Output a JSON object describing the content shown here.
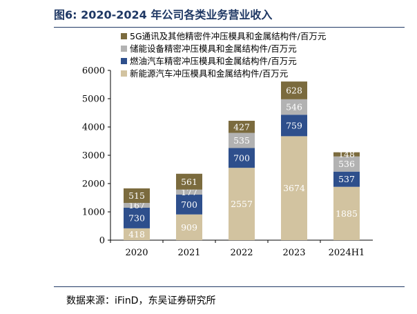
{
  "figure": {
    "title": "图6:  2020-2024 年公司各类业务营业收入",
    "source": "数据来源：iFinD，东吴证券研究所"
  },
  "chart_data": {
    "type": "bar",
    "stacked": true,
    "categories": [
      "2020",
      "2021",
      "2022",
      "2023",
      "2024H1"
    ],
    "ylim": [
      0,
      6000
    ],
    "yticks": [
      0,
      1000,
      2000,
      3000,
      4000,
      5000,
      6000
    ],
    "grid": false,
    "legend_position": "top",
    "series": [
      {
        "name": "新能源汽车冲压模具和金属结构件/百万元",
        "color": "#d2c3a0",
        "label_color": "#ffffff",
        "values": [
          418,
          909,
          2557,
          3674,
          1885
        ]
      },
      {
        "name": "燃油汽车精密冲压模具和金属结构件/百万元",
        "color": "#2e4f8c",
        "label_color": "#ffffff",
        "values": [
          730,
          700,
          700,
          759,
          537
        ]
      },
      {
        "name": "储能设备精密冲压模具和金属结构件/百万元",
        "color": "#b2b2b2",
        "label_color": "#ffffff",
        "values": [
          167,
          177,
          535,
          546,
          536
        ]
      },
      {
        "name": "5G通讯及其他精密件冲压模具和金属结构件/百万元",
        "color": "#7b6b3e",
        "label_color": "#ffffff",
        "values": [
          515,
          561,
          427,
          628,
          148
        ]
      }
    ]
  }
}
